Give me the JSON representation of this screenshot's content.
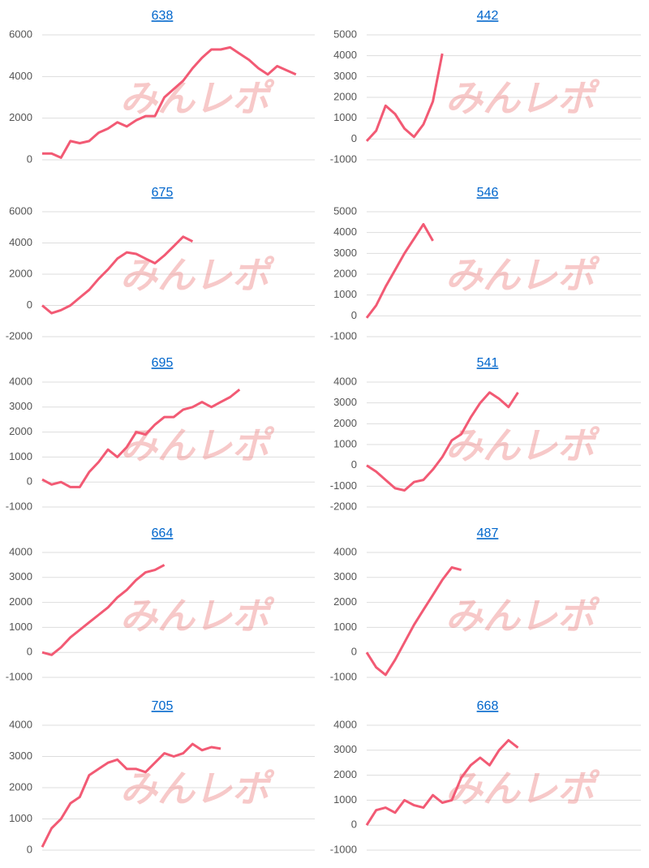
{
  "watermark": "みんレポ",
  "chart_data": [
    {
      "type": "line",
      "title": "638",
      "color": "#f25a74",
      "grid": true,
      "ylim": [
        0,
        6000
      ],
      "yticks": [
        0,
        2000,
        4000,
        6000
      ],
      "values": [
        300,
        300,
        100,
        900,
        800,
        900,
        1300,
        1500,
        1800,
        1600,
        1900,
        2100,
        2100,
        3000,
        3400,
        3800,
        4400,
        4900,
        5300,
        5300,
        5400,
        5100,
        4800,
        4400,
        4100,
        4500,
        4300,
        4100,
        null,
        null
      ]
    },
    {
      "type": "line",
      "title": "442",
      "color": "#f25a74",
      "grid": true,
      "ylim": [
        -1000,
        5000
      ],
      "yticks": [
        -1000,
        0,
        1000,
        2000,
        3000,
        4000,
        5000
      ],
      "values": [
        -100,
        400,
        1600,
        1200,
        500,
        100,
        700,
        1800,
        4100,
        null,
        null,
        null,
        null,
        null,
        null,
        null,
        null,
        null,
        null,
        null,
        null,
        null,
        null,
        null,
        null,
        null,
        null,
        null,
        null,
        null
      ]
    },
    {
      "type": "line",
      "title": "675",
      "color": "#f25a74",
      "grid": true,
      "ylim": [
        -2000,
        6000
      ],
      "yticks": [
        -2000,
        0,
        2000,
        4000,
        6000
      ],
      "values": [
        0,
        -500,
        -300,
        0,
        500,
        1000,
        1700,
        2300,
        3000,
        3400,
        3300,
        3000,
        2700,
        3200,
        3800,
        4400,
        4100,
        null,
        null,
        null,
        null,
        null,
        null,
        null,
        null,
        null,
        null,
        null,
        null,
        null
      ]
    },
    {
      "type": "line",
      "title": "546",
      "color": "#f25a74",
      "grid": true,
      "ylim": [
        -1000,
        5000
      ],
      "yticks": [
        -1000,
        0,
        1000,
        2000,
        3000,
        4000,
        5000
      ],
      "values": [
        -100,
        500,
        1400,
        2200,
        3000,
        3700,
        4400,
        3600,
        null,
        null,
        null,
        null,
        null,
        null,
        null,
        null,
        null,
        null,
        null,
        null,
        null,
        null,
        null,
        null,
        null,
        null,
        null,
        null,
        null,
        null
      ]
    },
    {
      "type": "line",
      "title": "695",
      "color": "#f25a74",
      "grid": true,
      "ylim": [
        -1000,
        4000
      ],
      "yticks": [
        -1000,
        0,
        1000,
        2000,
        3000,
        4000
      ],
      "values": [
        100,
        -100,
        0,
        -200,
        -200,
        400,
        800,
        1300,
        1000,
        1400,
        2000,
        1900,
        2300,
        2600,
        2600,
        2900,
        3000,
        3200,
        3000,
        3200,
        3400,
        3700,
        null,
        null,
        null,
        null,
        null,
        null,
        null,
        null
      ]
    },
    {
      "type": "line",
      "title": "541",
      "color": "#f25a74",
      "grid": true,
      "ylim": [
        -2000,
        4000
      ],
      "yticks": [
        -2000,
        -1000,
        0,
        1000,
        2000,
        3000,
        4000
      ],
      "values": [
        0,
        -300,
        -700,
        -1100,
        -1200,
        -800,
        -700,
        -200,
        400,
        1200,
        1500,
        2300,
        3000,
        3500,
        3200,
        2800,
        3500,
        null,
        null,
        null,
        null,
        null,
        null,
        null,
        null,
        null,
        null,
        null,
        null,
        null
      ]
    },
    {
      "type": "line",
      "title": "664",
      "color": "#f25a74",
      "grid": true,
      "ylim": [
        -1000,
        4000
      ],
      "yticks": [
        -1000,
        0,
        1000,
        2000,
        3000,
        4000
      ],
      "values": [
        0,
        -100,
        200,
        600,
        900,
        1200,
        1500,
        1800,
        2200,
        2500,
        2900,
        3200,
        3300,
        3500,
        null,
        null,
        null,
        null,
        null,
        null,
        null,
        null,
        null,
        null,
        null,
        null,
        null,
        null,
        null,
        null
      ]
    },
    {
      "type": "line",
      "title": "487",
      "color": "#f25a74",
      "grid": true,
      "ylim": [
        -1000,
        4000
      ],
      "yticks": [
        -1000,
        0,
        1000,
        2000,
        3000,
        4000
      ],
      "values": [
        0,
        -600,
        -900,
        -300,
        400,
        1100,
        1700,
        2300,
        2900,
        3400,
        3300,
        null,
        null,
        null,
        null,
        null,
        null,
        null,
        null,
        null,
        null,
        null,
        null,
        null,
        null,
        null,
        null,
        null,
        null,
        null
      ]
    },
    {
      "type": "line",
      "title": "705",
      "color": "#f25a74",
      "grid": true,
      "ylim": [
        0,
        4000
      ],
      "yticks": [
        0,
        1000,
        2000,
        3000,
        4000
      ],
      "values": [
        100,
        700,
        1000,
        1500,
        1700,
        2400,
        2600,
        2800,
        2900,
        2600,
        2600,
        2500,
        2800,
        3100,
        3000,
        3100,
        3400,
        3200,
        3300,
        3250,
        null,
        null,
        null,
        null,
        null,
        null,
        null,
        null,
        null,
        null
      ]
    },
    {
      "type": "line",
      "title": "668",
      "color": "#f25a74",
      "grid": true,
      "ylim": [
        -1000,
        4000
      ],
      "yticks": [
        -1000,
        0,
        1000,
        2000,
        3000,
        4000
      ],
      "values": [
        0,
        600,
        700,
        500,
        1000,
        800,
        700,
        1200,
        900,
        1000,
        1900,
        2400,
        2700,
        2400,
        3000,
        3400,
        3100,
        null,
        null,
        null,
        null,
        null,
        null,
        null,
        null,
        null,
        null,
        null,
        null,
        null
      ]
    }
  ]
}
